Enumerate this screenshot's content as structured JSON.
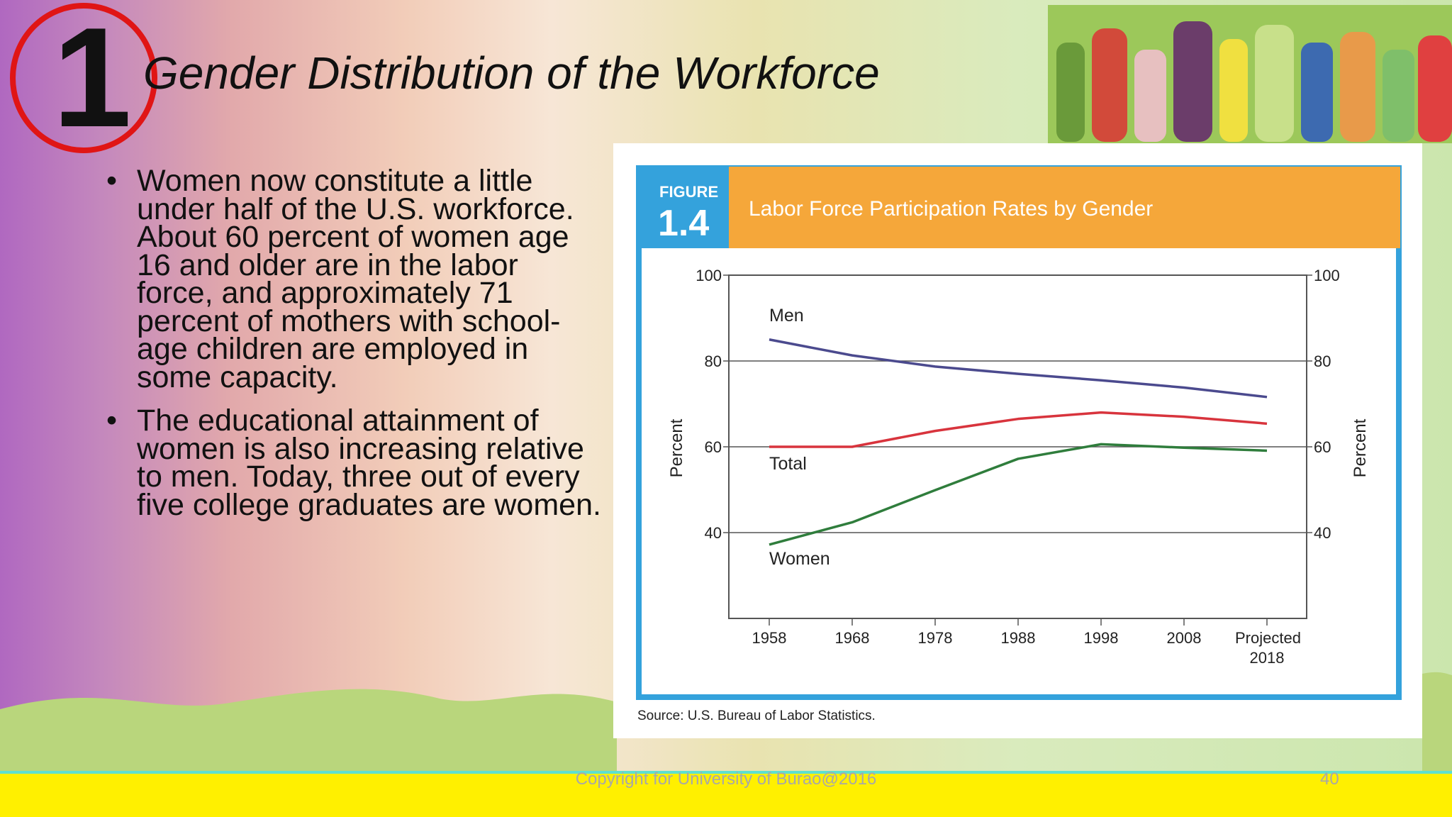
{
  "slide": {
    "number": "1",
    "title": "Gender Distribution of the Workforce",
    "bullets": [
      "Women now constitute a little under half of the U.S. workforce. About 60 percent of women age 16 and older are in the labor force, and approximately 71 percent of mothers with school-age children are employed in some capacity.",
      "The educational attainment of women is also increasing relative to men. Today, three out of every five college graduates are women."
    ],
    "footer": "Copyright for University of Burao@2016",
    "page_number": "40"
  },
  "figure": {
    "label": "FIGURE",
    "number": "1.4",
    "source": "Source: U.S. Bureau of Labor Statistics."
  },
  "chart_data": {
    "type": "line",
    "title": "Labor Force Participation Rates by Gender",
    "y_label": "Percent",
    "categories": [
      "1958",
      "1968",
      "1978",
      "1988",
      "1998",
      "2008",
      "Projected 2018"
    ],
    "series": [
      {
        "name": "Men",
        "color": "#4b4a8e",
        "values": [
          85,
          81.3,
          78.7,
          77,
          75.5,
          73.8,
          71.6
        ]
      },
      {
        "name": "Total",
        "color": "#d8343d",
        "values": [
          60,
          60,
          63.7,
          66.5,
          68,
          67,
          65.4
        ]
      },
      {
        "name": "Women",
        "color": "#2f7d3c",
        "values": [
          37.2,
          42.4,
          49.9,
          57.2,
          60.6,
          59.8,
          59.1
        ]
      }
    ],
    "ylim": [
      20,
      100
    ],
    "yticks": [
      40,
      60,
      80,
      100
    ],
    "grid": true,
    "right_axis_mirror": true
  }
}
